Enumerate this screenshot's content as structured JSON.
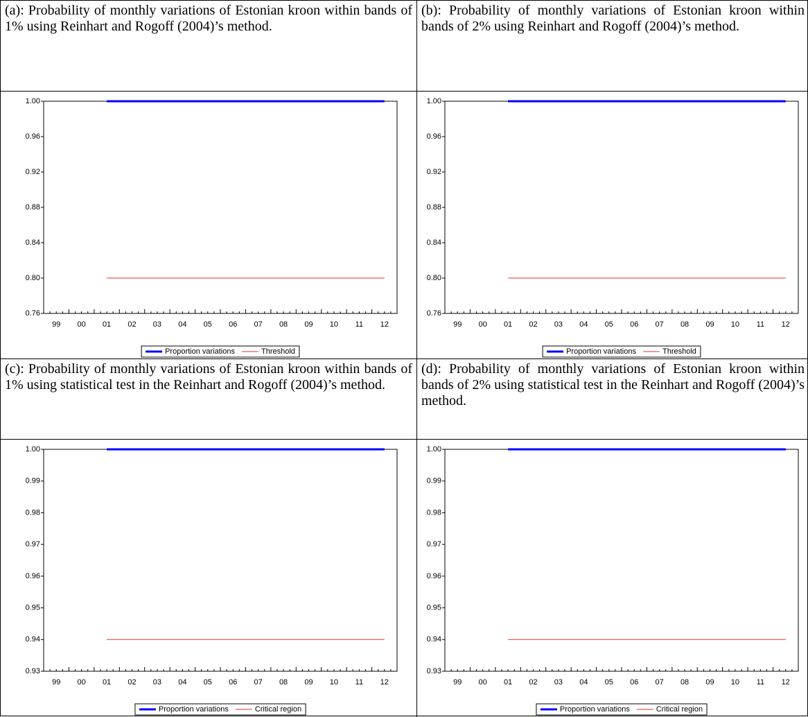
{
  "chart_data": [
    {
      "type": "line",
      "title": "(a): Probability of monthly variations of Estonian kroon within bands of 1% using Reinhart and Rogoff (2004)’s method.",
      "categories": [
        "99",
        "00",
        "01",
        "02",
        "03",
        "04",
        "05",
        "06",
        "07",
        "08",
        "09",
        "10",
        "11",
        "12"
      ],
      "series": [
        {
          "name": "Proportion variations",
          "color": "#0000ff",
          "values": [
            null,
            null,
            1,
            1,
            1,
            1,
            1,
            1,
            1,
            1,
            1,
            1,
            1,
            1
          ]
        },
        {
          "name": "Threshold",
          "color": "#e0302f",
          "values": [
            null,
            null,
            0.8,
            0.8,
            0.8,
            0.8,
            0.8,
            0.8,
            0.8,
            0.8,
            0.8,
            0.8,
            0.8,
            0.8
          ]
        }
      ],
      "ylim": [
        0.76,
        1
      ],
      "yticks": [
        0.76,
        {
          "value": 0.8,
          "label": "0.80"
        },
        0.84,
        0.88,
        0.92,
        0.96,
        {
          "value": 1,
          "label": "1.00"
        }
      ],
      "legend": "bottom"
    },
    {
      "type": "line",
      "title": "(b): Probability of monthly variations of Estonian kroon within bands of 2% using Reinhart and Rogoff (2004)’s method.",
      "categories": [
        "99",
        "00",
        "01",
        "02",
        "03",
        "04",
        "05",
        "06",
        "07",
        "08",
        "09",
        "10",
        "11",
        "12"
      ],
      "series": [
        {
          "name": "Proportion variations",
          "color": "#0000ff",
          "values": [
            null,
            null,
            1,
            1,
            1,
            1,
            1,
            1,
            1,
            1,
            1,
            1,
            1,
            1
          ]
        },
        {
          "name": "Threshold",
          "color": "#e0302f",
          "values": [
            null,
            null,
            0.8,
            0.8,
            0.8,
            0.8,
            0.8,
            0.8,
            0.8,
            0.8,
            0.8,
            0.8,
            0.8,
            0.8
          ]
        }
      ],
      "ylim": [
        0.76,
        1
      ],
      "yticks": [
        0.76,
        {
          "value": 0.8,
          "label": "0.80"
        },
        0.84,
        0.88,
        0.92,
        0.96,
        {
          "value": 1,
          "label": "1.00"
        }
      ],
      "legend": "bottom"
    },
    {
      "type": "line",
      "title": "(c): Probability of monthly variations of Estonian kroon within bands of 1% using statistical test in the Reinhart and Rogoff (2004)’s method.",
      "categories": [
        "99",
        "00",
        "01",
        "02",
        "03",
        "04",
        "05",
        "06",
        "07",
        "08",
        "09",
        "10",
        "11",
        "12"
      ],
      "series": [
        {
          "name": "Proportion variations",
          "color": "#0000ff",
          "values": [
            null,
            null,
            1,
            1,
            1,
            1,
            1,
            1,
            1,
            1,
            1,
            1,
            1,
            1
          ]
        },
        {
          "name": "Critical region",
          "color": "#e0302f",
          "values": [
            null,
            null,
            0.94,
            0.94,
            0.94,
            0.94,
            0.94,
            0.94,
            0.94,
            0.94,
            0.94,
            0.94,
            0.94,
            0.94
          ]
        }
      ],
      "ylim": [
        0.93,
        1
      ],
      "yticks": [
        0.93,
        0.94,
        0.95,
        0.96,
        0.97,
        0.98,
        0.99,
        {
          "value": 1,
          "label": "1.00"
        }
      ],
      "legend": "bottom"
    },
    {
      "type": "line",
      "title": "(d): Probability of monthly variations of Estonian kroon within bands of 2% using statistical test in the Reinhart and Rogoff (2004)’s method.",
      "categories": [
        "99",
        "00",
        "01",
        "02",
        "03",
        "04",
        "05",
        "06",
        "07",
        "08",
        "09",
        "10",
        "11",
        "12"
      ],
      "series": [
        {
          "name": "Proportion variations",
          "color": "#0000ff",
          "values": [
            null,
            null,
            1,
            1,
            1,
            1,
            1,
            1,
            1,
            1,
            1,
            1,
            1,
            1
          ]
        },
        {
          "name": "Critical region",
          "color": "#e0302f",
          "values": [
            null,
            null,
            0.94,
            0.94,
            0.94,
            0.94,
            0.94,
            0.94,
            0.94,
            0.94,
            0.94,
            0.94,
            0.94,
            0.94
          ]
        }
      ],
      "ylim": [
        0.93,
        1
      ],
      "yticks": [
        0.93,
        0.94,
        0.95,
        0.96,
        0.97,
        0.98,
        0.99,
        {
          "value": 1,
          "label": "1.00"
        }
      ],
      "legend": "bottom"
    }
  ]
}
